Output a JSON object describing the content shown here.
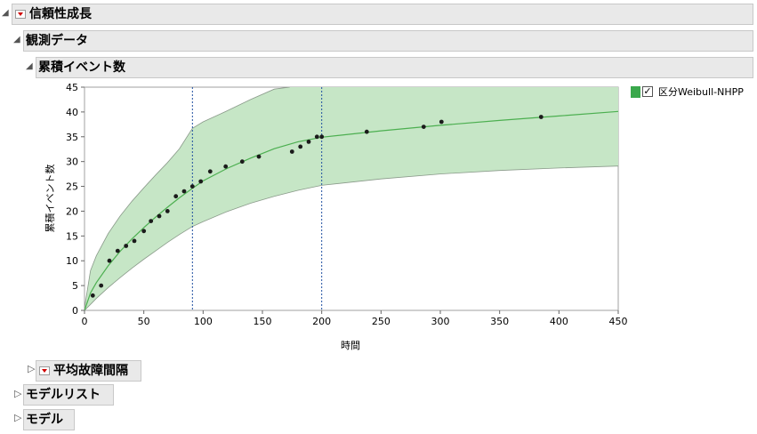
{
  "report": {
    "title": "信頼性成長",
    "observed": {
      "title": "観測データ",
      "plot": {
        "title": "累積イベント数"
      }
    },
    "mtbf": {
      "title": "平均故障間隔"
    },
    "model_list": {
      "title": "モデルリスト"
    },
    "model": {
      "title": "モデル"
    }
  },
  "legend": {
    "label": "区分Weibull-NHPP",
    "checked": true,
    "check_mark": "✓",
    "color": "#3aa84c"
  },
  "colors": {
    "band_fill": "#c6e6c6",
    "band_edge": "#8a9a8a",
    "fit_line": "#4caf50",
    "points": "#1b1b1b",
    "ref_line": "#1f4fa0"
  },
  "chart_data": {
    "type": "scatter",
    "xlabel": "時間",
    "ylabel": "累積イベント数",
    "xlim": [
      0,
      450
    ],
    "ylim": [
      0,
      45
    ],
    "x_ticks": [
      0,
      50,
      100,
      150,
      200,
      250,
      300,
      350,
      400,
      450
    ],
    "y_ticks": [
      0,
      5,
      10,
      15,
      20,
      25,
      30,
      35,
      40,
      45
    ],
    "reference_lines_x": [
      91,
      200
    ],
    "points": [
      [
        7,
        3
      ],
      [
        14,
        5
      ],
      [
        21,
        10
      ],
      [
        28,
        12
      ],
      [
        35,
        13
      ],
      [
        42,
        14
      ],
      [
        50,
        16
      ],
      [
        56,
        18
      ],
      [
        63,
        19
      ],
      [
        70,
        20
      ],
      [
        77,
        23
      ],
      [
        84,
        24
      ],
      [
        91,
        25
      ],
      [
        98,
        26
      ],
      [
        106,
        28
      ],
      [
        119,
        29
      ],
      [
        133,
        30
      ],
      [
        147,
        31
      ],
      [
        175,
        32
      ],
      [
        182,
        33
      ],
      [
        189,
        34
      ],
      [
        196,
        35
      ],
      [
        200,
        35
      ],
      [
        238,
        36
      ],
      [
        286,
        37
      ],
      [
        301,
        38
      ],
      [
        385,
        39
      ]
    ],
    "fit": [
      [
        0,
        0
      ],
      [
        5,
        3.5
      ],
      [
        10,
        5.6
      ],
      [
        20,
        9.0
      ],
      [
        30,
        11.9
      ],
      [
        40,
        14.4
      ],
      [
        50,
        16.7
      ],
      [
        60,
        18.8
      ],
      [
        70,
        20.8
      ],
      [
        80,
        22.7
      ],
      [
        91,
        24.6
      ],
      [
        100,
        26.1
      ],
      [
        120,
        28.6
      ],
      [
        140,
        30.7
      ],
      [
        160,
        32.6
      ],
      [
        180,
        34.0
      ],
      [
        200,
        34.9
      ],
      [
        250,
        36.2
      ],
      [
        300,
        37.3
      ],
      [
        350,
        38.3
      ],
      [
        400,
        39.2
      ],
      [
        450,
        40.1
      ]
    ],
    "band_upper": [
      [
        0,
        0.5
      ],
      [
        5,
        8.0
      ],
      [
        10,
        11.0
      ],
      [
        20,
        15.5
      ],
      [
        30,
        19.0
      ],
      [
        40,
        22.0
      ],
      [
        50,
        24.7
      ],
      [
        60,
        27.3
      ],
      [
        70,
        29.8
      ],
      [
        80,
        32.6
      ],
      [
        91,
        36.7
      ],
      [
        100,
        38.0
      ],
      [
        120,
        40.2
      ],
      [
        140,
        42.5
      ],
      [
        160,
        44.6
      ],
      [
        173,
        45
      ]
    ],
    "band_upper_tail": [
      [
        200,
        45
      ],
      [
        450,
        45
      ]
    ],
    "band_lower": [
      [
        0,
        0
      ],
      [
        5,
        1.2
      ],
      [
        10,
        2.4
      ],
      [
        20,
        4.6
      ],
      [
        30,
        6.6
      ],
      [
        40,
        8.5
      ],
      [
        50,
        10.3
      ],
      [
        60,
        12.0
      ],
      [
        70,
        13.7
      ],
      [
        80,
        15.3
      ],
      [
        91,
        16.9
      ],
      [
        100,
        17.9
      ],
      [
        120,
        19.9
      ],
      [
        140,
        21.6
      ],
      [
        160,
        23.0
      ],
      [
        180,
        24.2
      ],
      [
        200,
        25.2
      ],
      [
        250,
        26.5
      ],
      [
        300,
        27.5
      ],
      [
        350,
        28.2
      ],
      [
        400,
        28.7
      ],
      [
        450,
        29.1
      ]
    ]
  }
}
